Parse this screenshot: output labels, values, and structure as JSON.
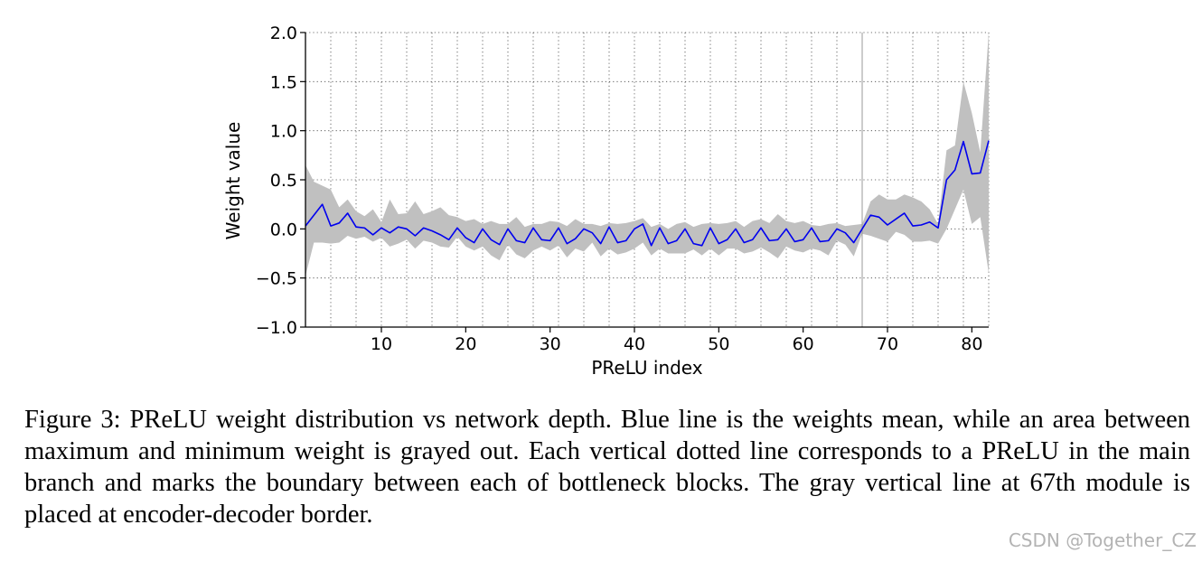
{
  "chart_data": {
    "type": "line",
    "xlabel": "PReLU index",
    "ylabel": "Weight value",
    "xlim": [
      1,
      82
    ],
    "ylim": [
      -1.0,
      2.0
    ],
    "xticks": [
      10,
      20,
      30,
      40,
      50,
      60,
      70,
      80
    ],
    "yticks": [
      -1.0,
      -0.5,
      0.0,
      0.5,
      1.0,
      1.5,
      2.0
    ],
    "ytick_labels": [
      "−1.0",
      "−0.5",
      "0.0",
      "0.5",
      "1.0",
      "1.5",
      "2.0"
    ],
    "grid": "vertical dotted lines at each PReLU in the main branch",
    "grid_x": [
      1,
      4,
      7,
      10,
      13,
      16,
      19,
      22,
      25,
      28,
      31,
      34,
      37,
      40,
      43,
      46,
      49,
      52,
      55,
      58,
      61,
      64,
      67,
      70,
      73,
      76,
      79,
      82
    ],
    "border_line_x": 67,
    "colors": {
      "mean": "#0000ee",
      "band": "#c0c0c0",
      "border": "#999999"
    },
    "x": [
      1,
      2,
      3,
      4,
      5,
      6,
      7,
      8,
      9,
      10,
      11,
      12,
      13,
      14,
      15,
      16,
      17,
      18,
      19,
      20,
      21,
      22,
      23,
      24,
      25,
      26,
      27,
      28,
      29,
      30,
      31,
      32,
      33,
      34,
      35,
      36,
      37,
      38,
      39,
      40,
      41,
      42,
      43,
      44,
      45,
      46,
      47,
      48,
      49,
      50,
      51,
      52,
      53,
      54,
      55,
      56,
      57,
      58,
      59,
      60,
      61,
      62,
      63,
      64,
      65,
      66,
      67,
      68,
      69,
      70,
      71,
      72,
      73,
      74,
      75,
      76,
      77,
      78,
      79,
      80,
      81,
      82
    ],
    "series": [
      {
        "values": [
          0.03,
          0.14,
          0.25,
          0.03,
          0.06,
          0.16,
          0.02,
          0.01,
          -0.06,
          0.01,
          -0.04,
          0.02,
          0.0,
          -0.07,
          0.01,
          -0.02,
          -0.06,
          -0.11,
          0.01,
          -0.09,
          -0.14,
          0.0,
          -0.11,
          -0.16,
          0.0,
          -0.12,
          -0.14,
          0.01,
          -0.11,
          -0.12,
          0.01,
          -0.15,
          -0.1,
          0.0,
          -0.04,
          -0.15,
          0.02,
          -0.14,
          -0.12,
          0.0,
          0.05,
          -0.17,
          0.01,
          -0.15,
          -0.12,
          0.0,
          -0.15,
          -0.17,
          0.01,
          -0.15,
          -0.11,
          0.0,
          -0.14,
          -0.11,
          0.01,
          -0.12,
          -0.11,
          0.0,
          -0.13,
          -0.11,
          0.01,
          -0.13,
          -0.12,
          0.0,
          -0.04,
          -0.14,
          0.0,
          0.14,
          0.12,
          0.04,
          0.1,
          0.16,
          0.03,
          0.04,
          0.07,
          0.01,
          0.5,
          0.6,
          0.89,
          0.56,
          0.57,
          0.9
        ]
      }
    ],
    "band": {
      "upper": [
        0.65,
        0.48,
        0.44,
        0.4,
        0.22,
        0.3,
        0.18,
        0.13,
        0.2,
        0.07,
        0.3,
        0.15,
        0.16,
        0.28,
        0.15,
        0.18,
        0.22,
        0.14,
        0.12,
        0.08,
        0.1,
        0.05,
        0.08,
        0.05,
        0.05,
        0.12,
        0.02,
        0.05,
        0.05,
        0.08,
        0.07,
        0.03,
        0.1,
        0.05,
        0.05,
        0.03,
        0.06,
        0.05,
        0.06,
        0.08,
        0.11,
        0.02,
        0.05,
        0.0,
        0.05,
        0.07,
        0.02,
        0.05,
        0.06,
        0.05,
        0.06,
        0.08,
        0.02,
        0.08,
        0.1,
        0.06,
        0.15,
        0.08,
        0.06,
        0.08,
        0.04,
        0.03,
        0.05,
        0.06,
        0.03,
        0.04,
        0.05,
        0.28,
        0.35,
        0.3,
        0.3,
        0.35,
        0.32,
        0.28,
        0.2,
        0.05,
        0.8,
        0.85,
        1.5,
        1.18,
        0.78,
        2.0
      ],
      "lower": [
        -0.48,
        -0.14,
        -0.14,
        -0.15,
        -0.14,
        -0.07,
        -0.1,
        -0.08,
        -0.13,
        -0.09,
        -0.18,
        -0.15,
        -0.11,
        -0.2,
        -0.12,
        -0.14,
        -0.18,
        -0.19,
        -0.08,
        -0.18,
        -0.22,
        -0.18,
        -0.27,
        -0.32,
        -0.16,
        -0.26,
        -0.3,
        -0.22,
        -0.18,
        -0.22,
        -0.17,
        -0.29,
        -0.2,
        -0.23,
        -0.14,
        -0.28,
        -0.2,
        -0.26,
        -0.24,
        -0.2,
        -0.14,
        -0.27,
        -0.2,
        -0.25,
        -0.25,
        -0.25,
        -0.21,
        -0.27,
        -0.2,
        -0.27,
        -0.2,
        -0.2,
        -0.25,
        -0.23,
        -0.19,
        -0.24,
        -0.3,
        -0.18,
        -0.22,
        -0.24,
        -0.2,
        -0.22,
        -0.27,
        -0.12,
        -0.16,
        -0.28,
        -0.05,
        -0.07,
        -0.1,
        -0.13,
        -0.03,
        -0.06,
        -0.13,
        -0.13,
        -0.12,
        -0.15,
        0.0,
        0.2,
        0.4,
        0.05,
        0.12,
        -0.45
      ]
    }
  },
  "caption": "Figure 3: PReLU weight distribution vs network depth. Blue line is the weights mean, while an area between maximum and minimum weight is grayed out. Each vertical dotted line corresponds to a PReLU in the main branch and marks the boundary between each of bottleneck blocks. The gray vertical line at 67th module is placed at encoder-decoder border.",
  "watermark": "CSDN @Together_CZ"
}
